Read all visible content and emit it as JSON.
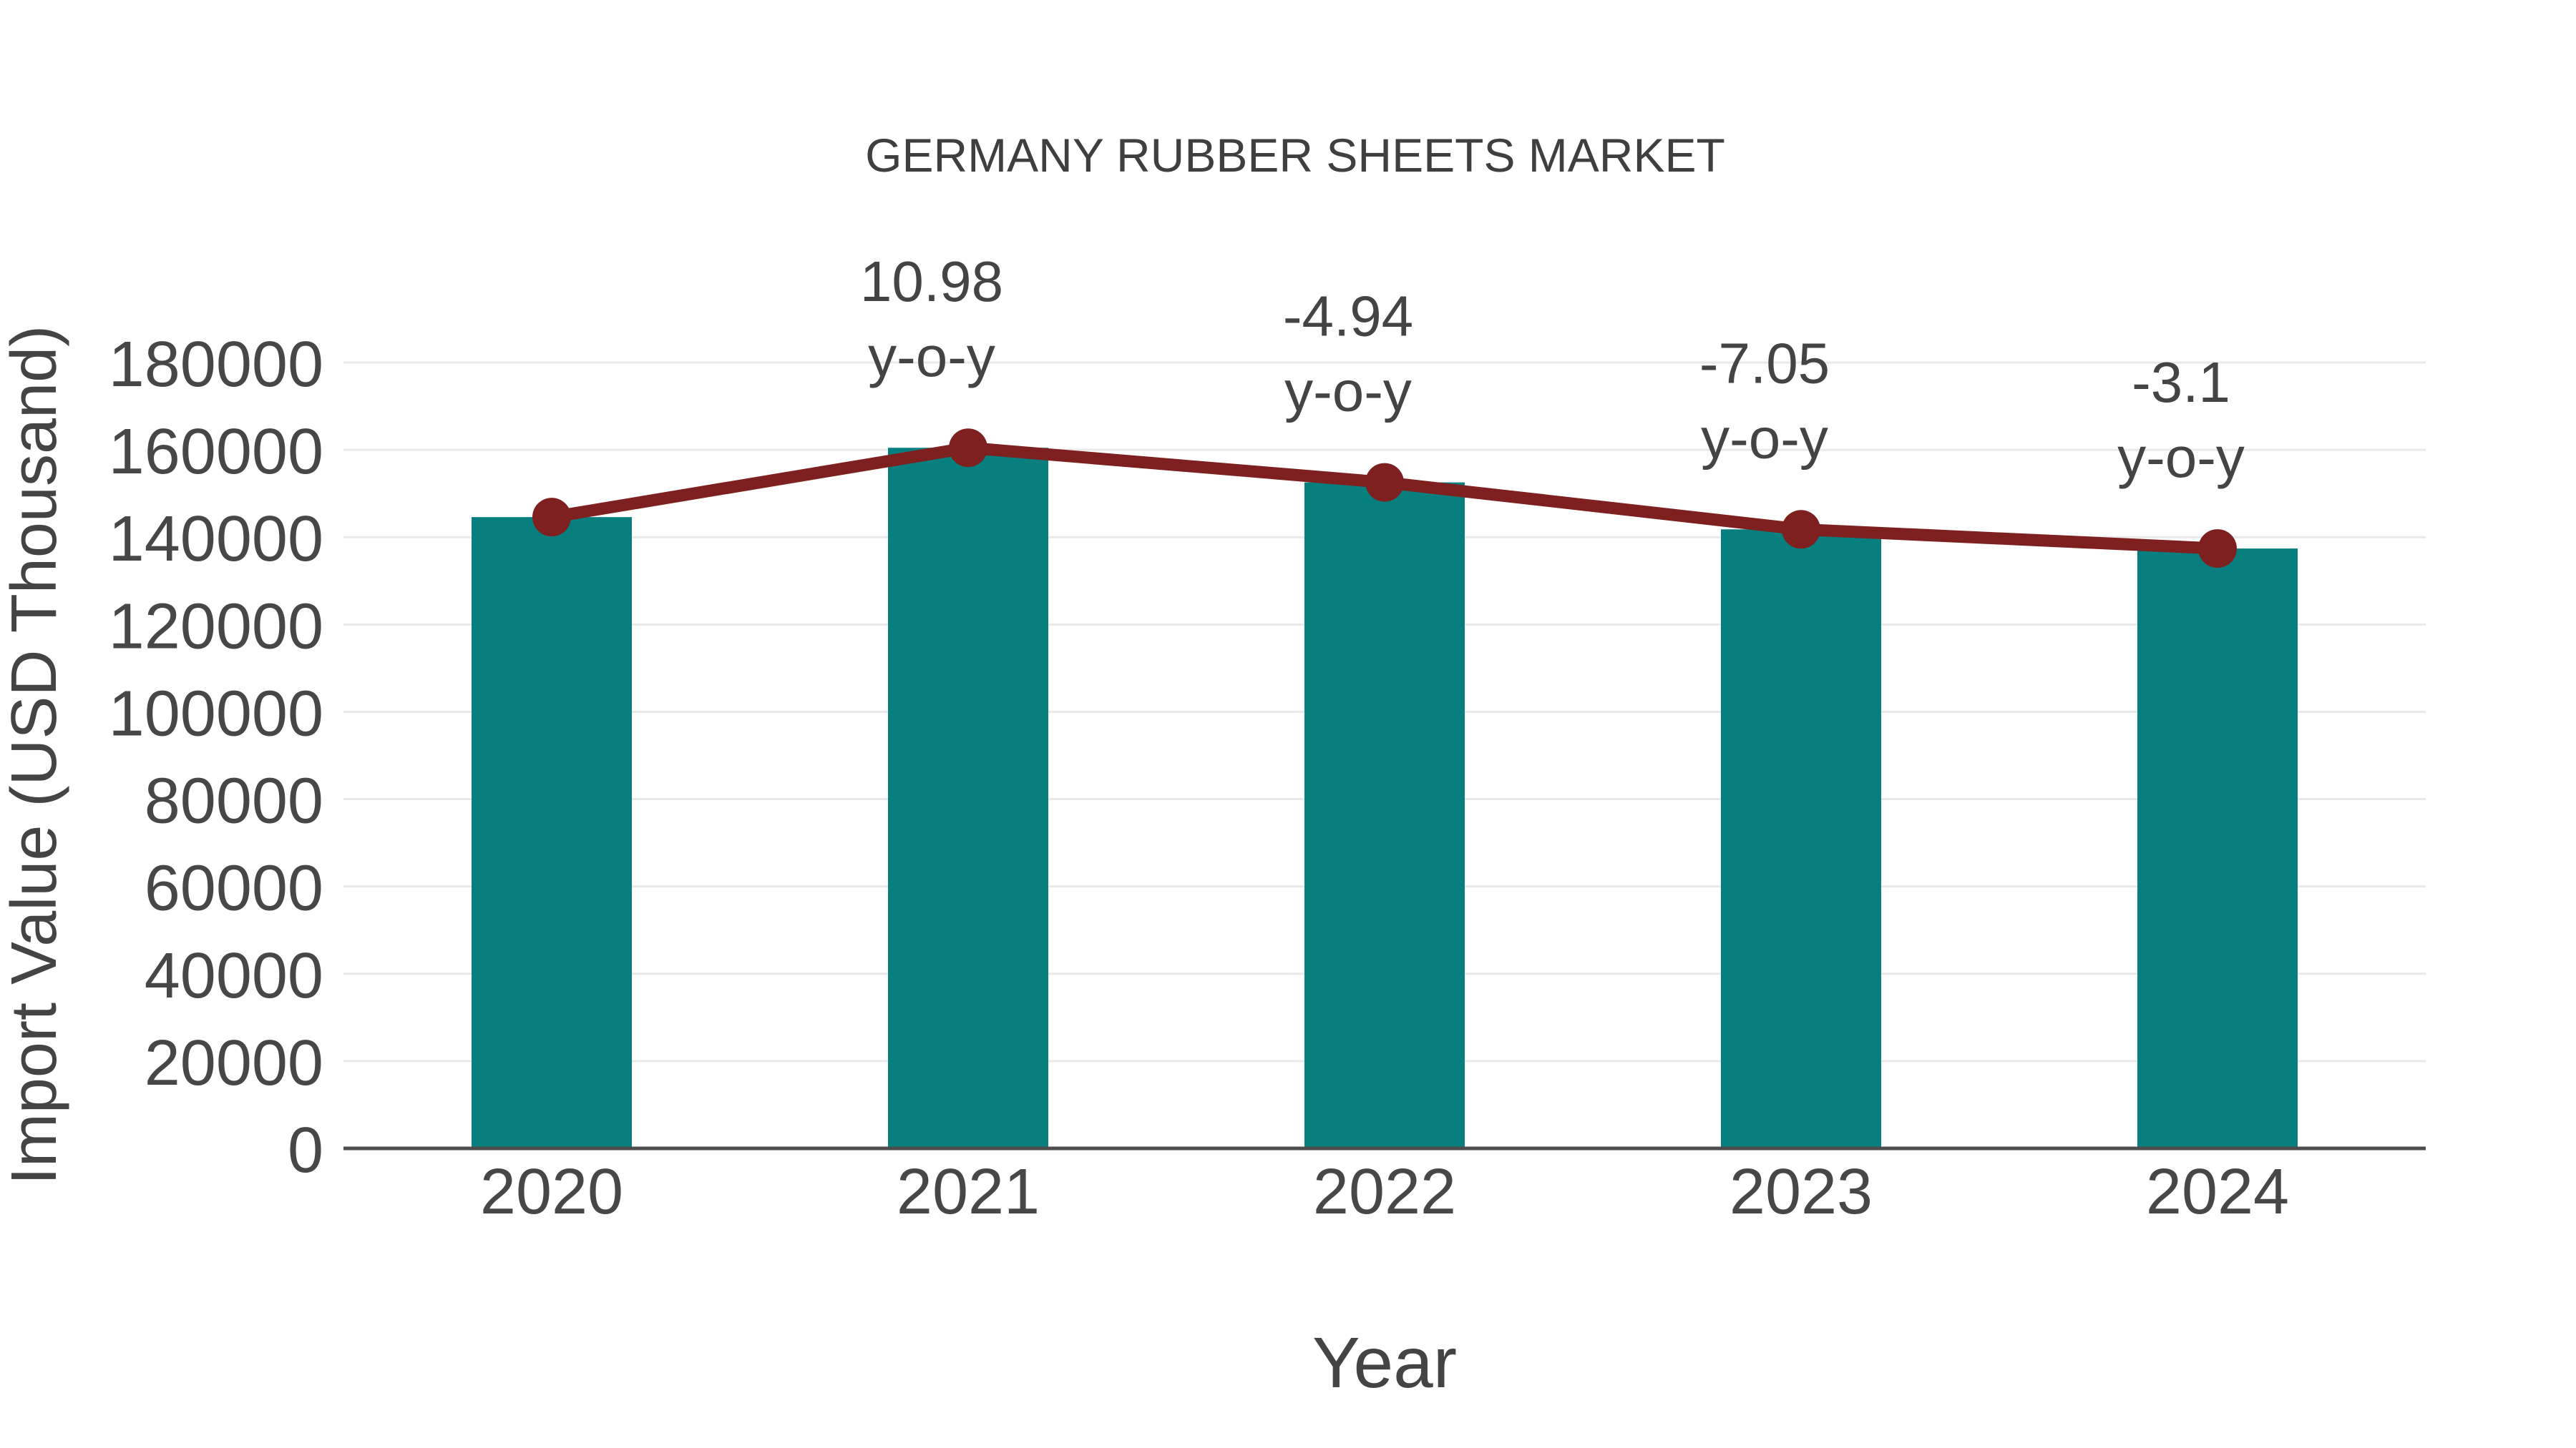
{
  "chart_data": {
    "type": "bar",
    "title": "GERMANY RUBBER SHEETS MARKET",
    "xlabel": "Year",
    "ylabel": "Import Value (USD Thousand)",
    "categories": [
      "2020",
      "2021",
      "2022",
      "2023",
      "2024"
    ],
    "series": [
      {
        "name": "Import Value bars",
        "type": "bar",
        "color": "#077f7f",
        "values": [
          144600,
          160477,
          152549,
          141794,
          137398
        ]
      },
      {
        "name": "Import Value trend line",
        "type": "line",
        "color": "#7f2020",
        "values": [
          144600,
          160477,
          152549,
          141794,
          137398
        ]
      }
    ],
    "yoy_annotations": {
      "values": [
        null,
        10.98,
        -4.94,
        -7.05,
        -3.1
      ],
      "suffix": "y-o-y"
    },
    "yticks": [
      0,
      20000,
      40000,
      60000,
      80000,
      100000,
      120000,
      140000,
      160000,
      180000
    ],
    "ylim": [
      0,
      180000
    ],
    "grid": true,
    "legend_position": "none",
    "colors": {
      "bar": "#077f7f",
      "line": "#7f2020",
      "marker": "#7f2020",
      "gridline": "#e9e9e9",
      "axis_line": "#4d4d4d",
      "text": "#444444",
      "background": "#ffffff"
    }
  }
}
